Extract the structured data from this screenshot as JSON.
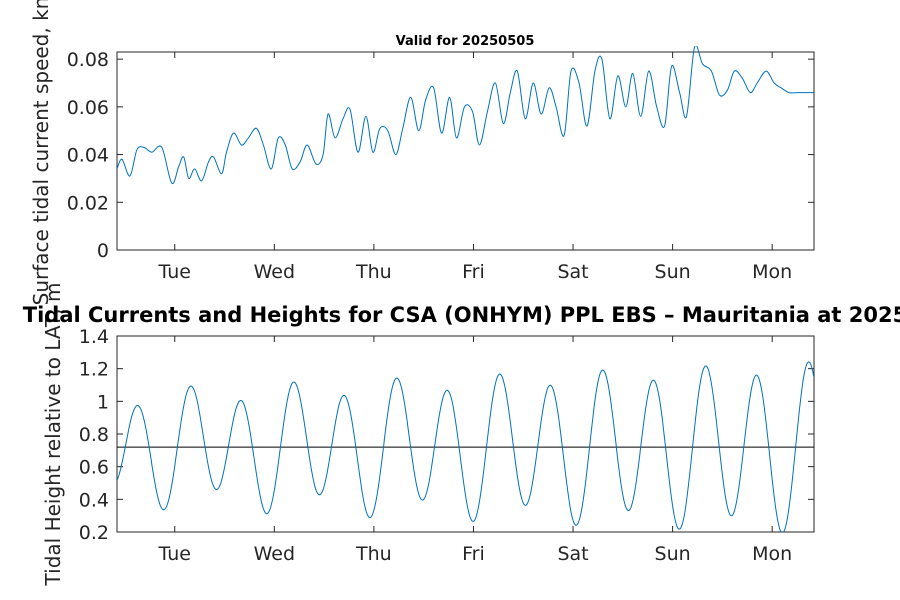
{
  "chart_data": [
    {
      "type": "line",
      "title": "Valid for 20250505",
      "xlabel": "",
      "ylabel": "Surface tidal current speed, kn",
      "xlim": [
        0,
        7
      ],
      "ylim": [
        0,
        0.083
      ],
      "yticks": [
        0,
        0.02,
        0.04,
        0.06,
        0.08
      ],
      "ytick_labels": [
        "0",
        "0.02",
        "0.04",
        "0.06",
        "0.08"
      ],
      "xticks": [
        0.58,
        1.58,
        2.58,
        3.58,
        4.58,
        5.58,
        6.58
      ],
      "xtick_labels": [
        "Tue",
        "Wed",
        "Thu",
        "Fri",
        "Sat",
        "Sun",
        "Mon"
      ],
      "grid": false,
      "color": "#0072BD",
      "series": [
        {
          "x": [
            0,
            0.05,
            0.13,
            0.2,
            0.27,
            0.35,
            0.45,
            0.55,
            0.62,
            0.67,
            0.72,
            0.78,
            0.85,
            0.92,
            0.97,
            1.05,
            1.1,
            1.17,
            1.25,
            1.32,
            1.4,
            1.47,
            1.55,
            1.62,
            1.69,
            1.76,
            1.84,
            1.91,
            2.0,
            2.07,
            2.12,
            2.19,
            2.27,
            2.34,
            2.42,
            2.5,
            2.57,
            2.64,
            2.72,
            2.8,
            2.87,
            2.95,
            3.03,
            3.1,
            3.18,
            3.26,
            3.34,
            3.41,
            3.49,
            3.57,
            3.64,
            3.72,
            3.8,
            3.88,
            3.95,
            4.02,
            4.1,
            4.18,
            4.26,
            4.34,
            4.41,
            4.49,
            4.56,
            4.64,
            4.72,
            4.8,
            4.87,
            4.95,
            5.03,
            5.11,
            5.18,
            5.26,
            5.34,
            5.42,
            5.5,
            5.57,
            5.65,
            5.72,
            5.8,
            5.88,
            5.97,
            6.05,
            6.13,
            6.2,
            6.28,
            6.36,
            6.43,
            6.52,
            6.6,
            6.67,
            6.75,
            6.84,
            6.92,
            7.0
          ],
          "y": [
            0.034,
            0.038,
            0.031,
            0.042,
            0.043,
            0.041,
            0.043,
            0.028,
            0.035,
            0.039,
            0.03,
            0.034,
            0.029,
            0.037,
            0.039,
            0.032,
            0.041,
            0.049,
            0.044,
            0.047,
            0.051,
            0.044,
            0.034,
            0.047,
            0.044,
            0.034,
            0.037,
            0.044,
            0.036,
            0.04,
            0.057,
            0.047,
            0.055,
            0.059,
            0.041,
            0.056,
            0.041,
            0.051,
            0.05,
            0.04,
            0.051,
            0.064,
            0.05,
            0.063,
            0.068,
            0.049,
            0.064,
            0.047,
            0.06,
            0.058,
            0.044,
            0.058,
            0.07,
            0.053,
            0.066,
            0.075,
            0.055,
            0.07,
            0.057,
            0.068,
            0.06,
            0.048,
            0.075,
            0.07,
            0.052,
            0.075,
            0.08,
            0.055,
            0.073,
            0.06,
            0.074,
            0.056,
            0.075,
            0.06,
            0.052,
            0.077,
            0.066,
            0.056,
            0.085,
            0.078,
            0.075,
            0.065,
            0.067,
            0.075,
            0.072,
            0.066,
            0.07,
            0.075,
            0.07,
            0.068,
            0.066,
            0.066,
            0.066,
            0.066
          ]
        }
      ]
    },
    {
      "type": "line",
      "title": "Tidal Currents and Heights for CSA (ONHYM) PPL EBS  – Mauritania at 2025",
      "xlabel": "",
      "ylabel": "Tidal Height relative to LAT, m",
      "xlim": [
        0,
        7
      ],
      "ylim": [
        0.2,
        1.4
      ],
      "yticks": [
        0.2,
        0.4,
        0.6,
        0.8,
        1.0,
        1.2,
        1.4
      ],
      "ytick_labels": [
        "0.2",
        "0.4",
        "0.6",
        "0.8",
        "1",
        "1.2",
        "1.4"
      ],
      "xticks": [
        0.58,
        1.58,
        2.58,
        3.58,
        4.58,
        5.58,
        6.58
      ],
      "xtick_labels": [
        "Tue",
        "Wed",
        "Thu",
        "Fri",
        "Sat",
        "Sun",
        "Mon"
      ],
      "grid": false,
      "color": "#0072BD",
      "reference_line": 0.72,
      "series": [
        {
          "amplitude_start": 0.3,
          "amplitude_end": 0.49,
          "mean": 0.72,
          "period_days": 0.5175,
          "phase_at_x0": -1.05,
          "note_high_peaks": [
            1.05,
            0.87,
            1.07,
            0.94,
            1.1,
            1.02,
            1.13,
            1.09,
            1.15,
            1.15,
            1.16,
            1.19,
            1.15,
            1.21
          ],
          "note_low_troughs": [
            0.53,
            0.45,
            0.53,
            0.41,
            0.49,
            0.36,
            0.43,
            0.31,
            0.38,
            0.27,
            0.31,
            0.23,
            0.27,
            0.21
          ]
        }
      ]
    }
  ]
}
